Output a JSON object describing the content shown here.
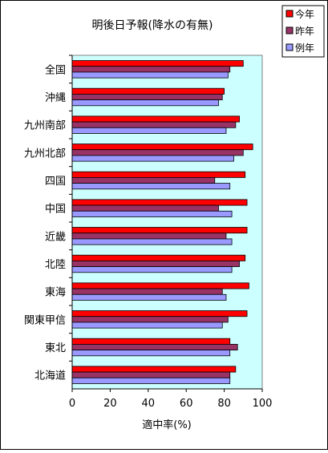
{
  "chart_data": {
    "type": "bar",
    "orientation": "horizontal",
    "title": "明後日予報(降水の有無)",
    "xlabel": "適中率(%)",
    "ylabel": "",
    "xlim": [
      0,
      100
    ],
    "x_ticks": [
      "0",
      "20",
      "40",
      "60",
      "80",
      "100"
    ],
    "grid": false,
    "legend_position": "top-right",
    "categories": [
      "全国",
      "沖縄",
      "九州南部",
      "九州北部",
      "四国",
      "中国",
      "近畿",
      "北陸",
      "東海",
      "関東甲信",
      "東北",
      "北海道"
    ],
    "series": [
      {
        "name": "今年",
        "color": "#ff0000",
        "values": [
          90,
          80,
          88,
          95,
          91,
          92,
          92,
          91,
          93,
          92,
          83,
          86
        ]
      },
      {
        "name": "昨年",
        "color": "#993366",
        "values": [
          83,
          79,
          86,
          90,
          75,
          77,
          81,
          88,
          79,
          82,
          87,
          83
        ]
      },
      {
        "name": "例年",
        "color": "#9999ff",
        "values": [
          82,
          77,
          81,
          85,
          83,
          84,
          84,
          84,
          81,
          79,
          83,
          83
        ]
      }
    ],
    "colors": {
      "plot_background": "#ccffff",
      "chart_background": "#ffffff"
    }
  }
}
